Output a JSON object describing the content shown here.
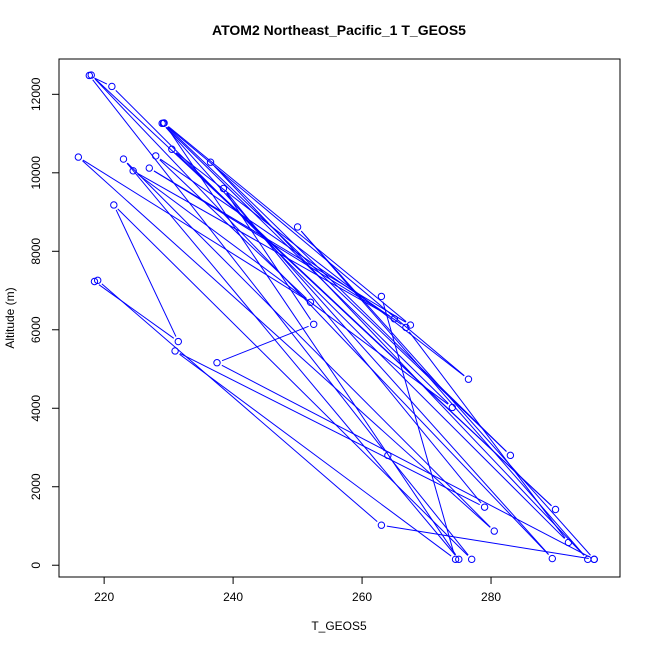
{
  "chart_data": {
    "type": "line",
    "title": "ATOM2 Northeast_Pacific_1 T_GEOS5",
    "xlabel": "T_GEOS5",
    "ylabel": "Altitude (m)",
    "xlim": [
      213,
      300
    ],
    "ylim": [
      -300,
      12900
    ],
    "xticks": [
      220,
      240,
      260,
      280
    ],
    "yticks": [
      0,
      2000,
      4000,
      6000,
      8000,
      10000,
      12000
    ],
    "grid": false,
    "markers": "open-circle",
    "series_color": "#0000FF",
    "series": [
      {
        "x": [
          296.0,
          263.0,
          219.0,
          218.5,
          231.5,
          221.5,
          277.0,
          264.0,
          217.7,
          221.2,
          292.0,
          266.8,
          228.0,
          252.0,
          216.0,
          280.5,
          223.0,
          275.0,
          229.3,
          267.5,
          227.0,
          265.0,
          224.5,
          274.0,
          229.0,
          289.5,
          218.0,
          290.0,
          230.5,
          276.5,
          229.2,
          283.0,
          236.5,
          295.0,
          250.0,
          296.0,
          237.5,
          252.5,
          238.5,
          279.0,
          231.0,
          274.5,
          263.0
        ],
        "y": [
          150,
          1020,
          7260,
          7230,
          5700,
          9180,
          150,
          2800,
          12480,
          12200,
          580,
          6060,
          10430,
          6700,
          10400,
          870,
          10350,
          150,
          11270,
          6120,
          10120,
          6280,
          10050,
          4020,
          11260,
          170,
          12490,
          1420,
          10600,
          4740,
          11260,
          2800,
          10270,
          150,
          8620,
          150,
          5160,
          6140,
          9600,
          1480,
          5460,
          150,
          6850
        ]
      }
    ]
  }
}
